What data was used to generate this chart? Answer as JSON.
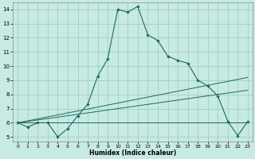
{
  "xlabel": "Humidex (Indice chaleur)",
  "xlim": [
    -0.5,
    23.5
  ],
  "ylim": [
    4.7,
    14.5
  ],
  "xticks": [
    0,
    1,
    2,
    3,
    4,
    5,
    6,
    7,
    8,
    9,
    10,
    11,
    12,
    13,
    14,
    15,
    16,
    17,
    18,
    19,
    20,
    21,
    22,
    23
  ],
  "yticks": [
    5,
    6,
    7,
    8,
    9,
    10,
    11,
    12,
    13,
    14
  ],
  "background_color": "#c8eae4",
  "grid_color": "#9ecfc7",
  "line_color": "#1a6b5a",
  "curve1_x": [
    0,
    1,
    2,
    3,
    4,
    5,
    6,
    7,
    8,
    9,
    10,
    11,
    12,
    13,
    14,
    15,
    16,
    17,
    18,
    19,
    20,
    21,
    22,
    23
  ],
  "curve1_y": [
    6.0,
    5.7,
    6.0,
    6.0,
    5.0,
    5.6,
    6.5,
    7.3,
    9.3,
    10.5,
    14.0,
    13.8,
    14.2,
    12.2,
    11.8,
    10.7,
    10.4,
    10.2,
    9.0,
    8.6,
    7.9,
    6.1,
    5.1,
    6.1
  ],
  "line1_x": [
    0,
    23
  ],
  "line1_y": [
    6.0,
    6.0
  ],
  "line2_x": [
    0,
    23
  ],
  "line2_y": [
    6.0,
    8.3
  ],
  "line3_x": [
    0,
    23
  ],
  "line3_y": [
    6.0,
    9.2
  ]
}
